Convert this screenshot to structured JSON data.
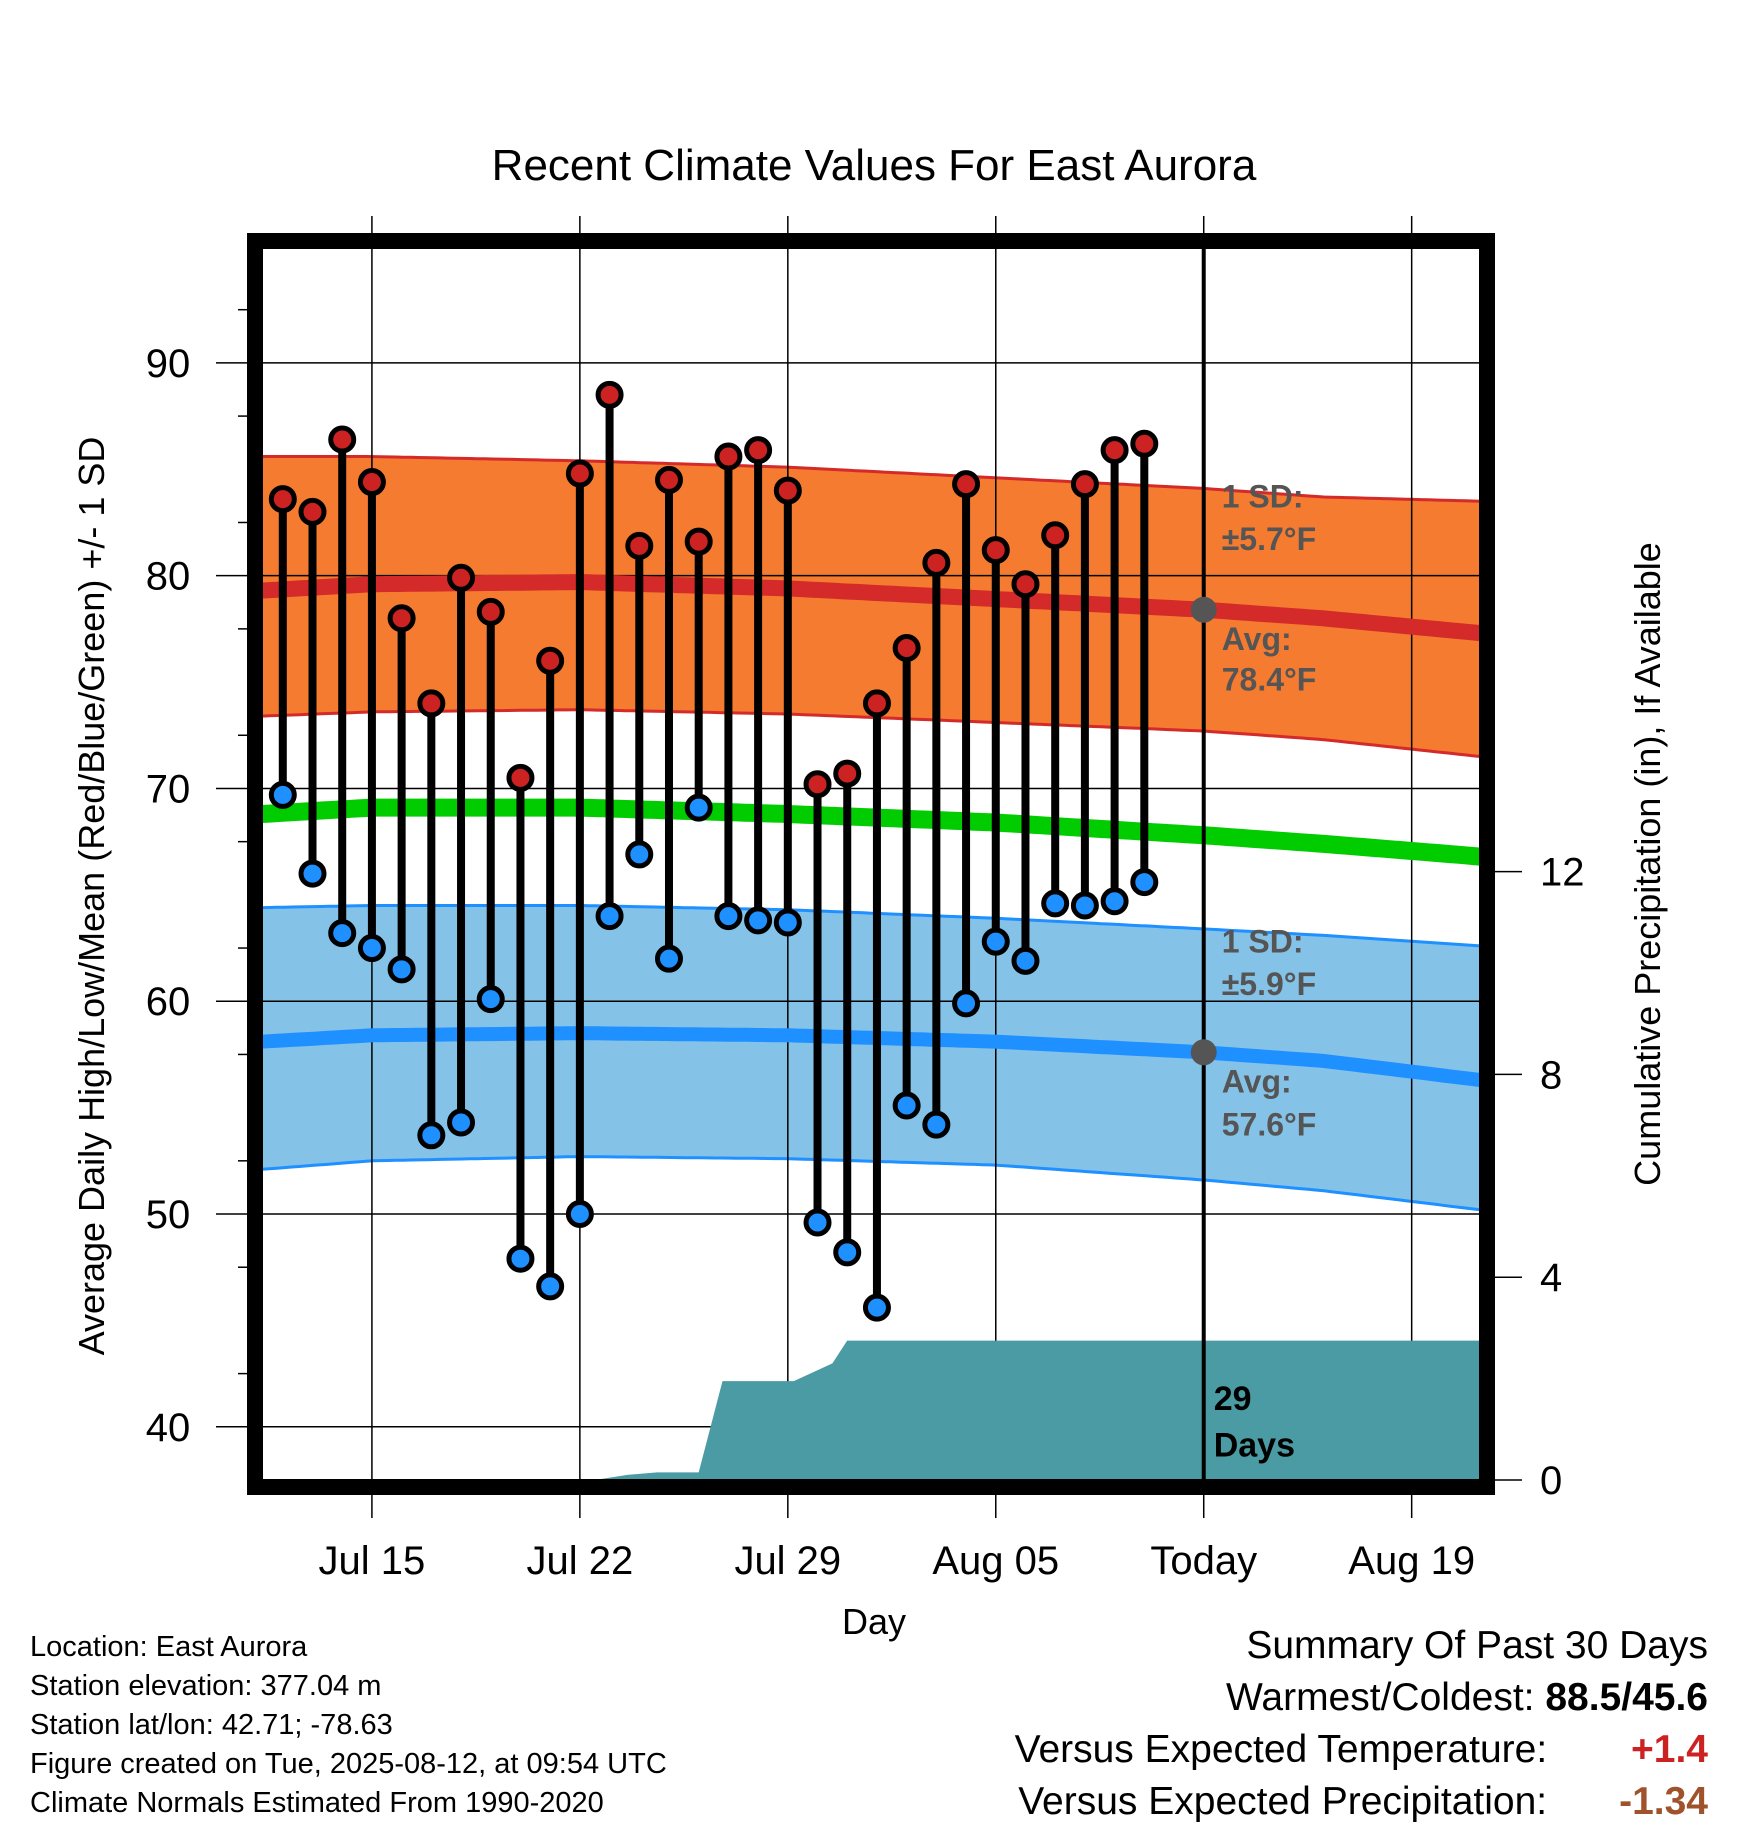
{
  "chart_data": {
    "type": "line",
    "title": "Recent Climate Values For East Aurora",
    "xlabel": "Day",
    "ylabel": "Average Daily High/Low/Mean (Red/Blue/Green) +/- 1 SD",
    "y2label": "Cumulative Precipitation (in), If Available",
    "ylim": [
      37.5,
      95.4
    ],
    "y2lim": [
      0,
      24.3
    ],
    "xticks": [
      {
        "x": 3,
        "label": "Jul 15"
      },
      {
        "x": 10,
        "label": "Jul 22"
      },
      {
        "x": 17,
        "label": "Jul 29"
      },
      {
        "x": 24,
        "label": "Aug 05"
      },
      {
        "x": 31,
        "label": "Today"
      },
      {
        "x": 38,
        "label": "Aug 19"
      }
    ],
    "yticks": [
      40,
      50,
      60,
      70,
      80,
      90
    ],
    "y2ticks": [
      0,
      4,
      8,
      12
    ],
    "xrange": [
      -0.7,
      40.3
    ],
    "today_x": 31,
    "normals": {
      "x": [
        -0.7,
        3,
        10,
        17,
        24,
        31,
        35,
        40.3
      ],
      "high_mean": [
        79.3,
        79.6,
        79.7,
        79.4,
        78.9,
        78.4,
        78.0,
        77.3
      ],
      "high_upper": [
        85.6,
        85.6,
        85.4,
        85.1,
        84.6,
        84.1,
        83.7,
        83.5
      ],
      "high_lower": [
        73.4,
        73.6,
        73.7,
        73.5,
        73.1,
        72.7,
        72.3,
        71.5
      ],
      "avg_mean": [
        68.8,
        69.1,
        69.1,
        68.8,
        68.4,
        67.8,
        67.4,
        66.8
      ],
      "low_mean": [
        58.1,
        58.4,
        58.5,
        58.4,
        58.1,
        57.6,
        57.2,
        56.3
      ],
      "low_upper": [
        64.4,
        64.5,
        64.5,
        64.3,
        63.9,
        63.4,
        63.1,
        62.6
      ],
      "low_lower": [
        52.1,
        52.5,
        52.7,
        52.6,
        52.3,
        51.6,
        51.1,
        50.2
      ]
    },
    "series": [
      {
        "name": "High",
        "values": [
          83.6,
          83.0,
          86.4,
          84.4,
          78.0,
          74.0,
          79.9,
          78.3,
          70.5,
          76.0,
          84.8,
          88.5,
          81.4,
          84.5,
          81.6,
          85.6,
          85.9,
          84.0,
          70.2,
          70.7,
          74.0,
          76.6,
          80.6,
          84.3,
          81.2,
          79.6,
          81.9,
          84.3,
          85.9,
          86.2
        ]
      },
      {
        "name": "Low",
        "values": [
          69.7,
          66.0,
          63.2,
          62.5,
          61.5,
          53.7,
          54.3,
          60.1,
          47.9,
          46.6,
          50.0,
          64.0,
          66.9,
          62.0,
          69.1,
          64.0,
          63.8,
          63.7,
          49.6,
          48.2,
          45.6,
          55.1,
          54.2,
          59.9,
          62.8,
          61.9,
          64.6,
          64.5,
          64.7,
          65.6
        ]
      },
      {
        "name": "Cumulative Precipitation",
        "x": [
          -0.7,
          8.5,
          10.5,
          11.6,
          12.6,
          14.0,
          14.8,
          16.8,
          17.2,
          18.5,
          19.0,
          40.3
        ],
        "values": [
          0,
          0,
          0,
          0.1,
          0.15,
          0.15,
          1.95,
          1.95,
          1.95,
          2.3,
          2.75,
          2.75
        ]
      }
    ],
    "annotations": {
      "high_sd_label": "1 SD:",
      "high_sd_value": "±5.7°F",
      "high_avg_label": "Avg:",
      "high_avg_value": "78.4°F",
      "low_sd_label": "1 SD:",
      "low_sd_value": "±5.9°F",
      "low_avg_label": "Avg:",
      "low_avg_value": "57.6°F",
      "precip_days": "29",
      "precip_days_label": "Days"
    }
  },
  "colors": {
    "high_band": "#F47B2F",
    "high_line": "#D42A2A",
    "low_band": "#85C2E8",
    "low_line": "#1E90FF",
    "mean_line": "#00CC00",
    "precip": "#4A9BA4",
    "high_dot": "#CC2222",
    "low_dot": "#1E90FF",
    "warm_anomaly": "#CC2222",
    "precip_anomaly": "#A0522D"
  },
  "footer": {
    "location": "Location: East Aurora",
    "elevation": "Station elevation: 377.04 m",
    "latlon": "Station lat/lon: 42.71; -78.63",
    "created": "Figure created on Tue, 2025-08-12, at 09:54 UTC",
    "normals": "Climate Normals Estimated From 1990-2020"
  },
  "summary": {
    "title": "Summary Of Past 30 Days",
    "warm_cold_label": "Warmest/Coldest:",
    "warm_cold_value": "88.5/45.6",
    "temp_label": "Versus Expected Temperature:",
    "temp_value": "+1.4",
    "precip_label": "Versus Expected Precipitation:",
    "precip_value": "-1.34"
  }
}
